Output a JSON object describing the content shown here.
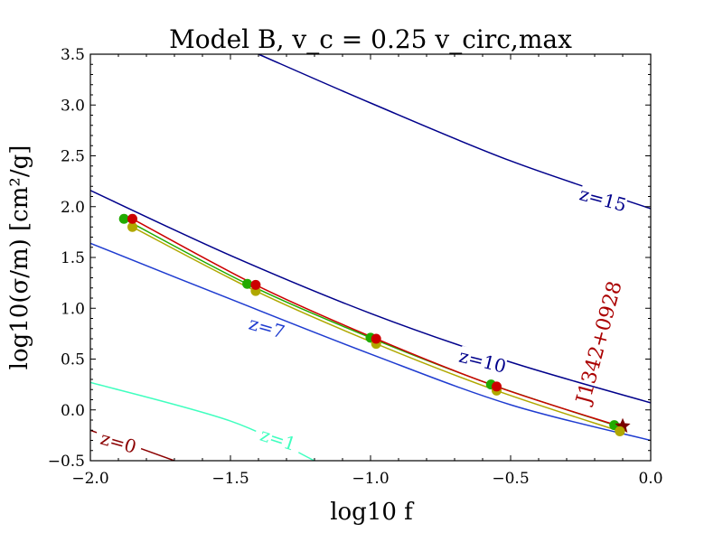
{
  "chart_data": {
    "type": "line",
    "title": "Model B, v_c = 0.25 v_circ,max",
    "xlabel": "log10 f",
    "ylabel": "log10(σ/m) [cm²/g]",
    "xlim": [
      -2.0,
      0.0
    ],
    "ylim": [
      -0.5,
      3.5
    ],
    "grid": false,
    "x_ticks": [
      "−2.0",
      "−1.5",
      "−1.0",
      "−0.5",
      "0.0"
    ],
    "y_ticks": [
      "−0.5",
      "0.0",
      "0.5",
      "1.0",
      "1.5",
      "2.0",
      "2.5",
      "3.0",
      "3.5"
    ],
    "contours": [
      {
        "label": "z=0",
        "color": "#8b0000",
        "points": [
          [
            -2.0,
            -0.2
          ],
          [
            -1.7,
            -0.5
          ]
        ]
      },
      {
        "label": "z=1",
        "color": "#40ffbf",
        "points": [
          [
            -2.0,
            0.27
          ],
          [
            -1.5,
            -0.11
          ],
          [
            -1.2,
            -0.5
          ]
        ]
      },
      {
        "label": "z=7",
        "color": "#1f3cd0",
        "points": [
          [
            -2.0,
            1.64
          ],
          [
            -1.5,
            1.09
          ],
          [
            -1.0,
            0.55
          ],
          [
            -0.5,
            0.05
          ],
          [
            0.0,
            -0.3
          ]
        ]
      },
      {
        "label": "z=10",
        "color": "#00008b",
        "points": [
          [
            -2.0,
            2.16
          ],
          [
            -1.5,
            1.52
          ],
          [
            -1.0,
            0.95
          ],
          [
            -0.5,
            0.47
          ],
          [
            0.0,
            0.07
          ]
        ]
      },
      {
        "label": "z=15",
        "color": "#00008b",
        "points": [
          [
            -1.4,
            3.5
          ],
          [
            -1.0,
            3.02
          ],
          [
            -0.5,
            2.45
          ],
          [
            0.0,
            1.98
          ]
        ]
      }
    ],
    "series": [
      {
        "color": "#cc0000",
        "x": [
          -1.85,
          -1.41,
          -0.98,
          -0.55,
          -0.1
        ],
        "y": [
          1.88,
          1.23,
          0.7,
          0.23,
          -0.17
        ]
      },
      {
        "color": "#22aa00",
        "x": [
          -1.88,
          -1.44,
          -1.0,
          -0.57,
          -0.13
        ],
        "y": [
          1.88,
          1.24,
          0.71,
          0.25,
          -0.15
        ]
      },
      {
        "color": "#b0a800",
        "x": [
          -1.85,
          -1.41,
          -0.98,
          -0.55,
          -0.11
        ],
        "y": [
          1.8,
          1.17,
          0.65,
          0.19,
          -0.21
        ]
      }
    ],
    "annotation": {
      "text": "J1342+0928",
      "x": -0.1,
      "y": -0.16,
      "color": "#aa0000"
    }
  }
}
